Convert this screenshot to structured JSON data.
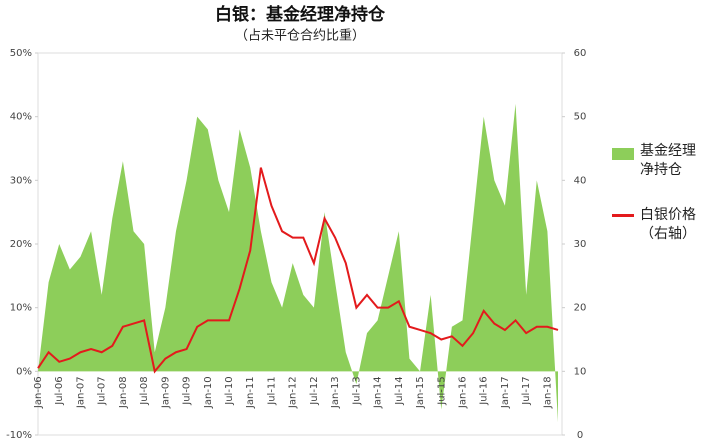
{
  "chart_data": {
    "type": "area-line",
    "title": "白银：基金经理净持仓",
    "subtitle": "（占未平仓合约比重）",
    "categories": [
      "Jan-06",
      null,
      "Jul-06",
      null,
      "Jan-07",
      null,
      "Jul-07",
      null,
      "Jan-08",
      null,
      "Jul-08",
      null,
      "Jan-09",
      null,
      "Jul-09",
      null,
      "Jan-10",
      null,
      "Jul-10",
      null,
      "Jan-11",
      null,
      "Jul-11",
      null,
      "Jan-12",
      null,
      "Jul-12",
      null,
      "Jan-13",
      null,
      "Jul-13",
      null,
      "Jan-14",
      null,
      "Jul-14",
      null,
      "Jan-15",
      null,
      "Jul-15",
      null,
      "Jan-16",
      null,
      "Jul-16",
      null,
      "Jan-17",
      null,
      "Jul-17",
      null,
      "Jan-18",
      null
    ],
    "series": [
      {
        "name": "基金经理净持仓",
        "type": "area",
        "color": "#8dce5a",
        "values": [
          0,
          14,
          20,
          16,
          18,
          22,
          12,
          24,
          33,
          22,
          20,
          3,
          10,
          22,
          30,
          40,
          38,
          30,
          25,
          38,
          32,
          22,
          14,
          10,
          17,
          12,
          10,
          25,
          14,
          3,
          -2,
          6,
          8,
          15,
          22,
          2,
          0,
          12,
          -6,
          7,
          8,
          24,
          40,
          30,
          26,
          42,
          12,
          30,
          22,
          -8
        ]
      },
      {
        "name": "白银价格（右轴）",
        "type": "line",
        "axis": "y2",
        "color": "#e31a1c",
        "values": [
          10.5,
          13,
          11.5,
          12,
          13,
          13.5,
          13,
          14,
          17,
          17.5,
          18,
          10,
          12,
          13,
          13.5,
          17,
          18,
          18,
          18,
          23,
          29,
          42,
          36,
          32,
          31,
          31,
          27,
          34,
          31,
          27,
          20,
          22,
          20,
          20,
          21,
          17,
          16.5,
          16,
          15,
          15.5,
          14,
          16,
          19.5,
          17.5,
          16.5,
          18,
          16,
          17,
          17,
          16.5
        ]
      }
    ],
    "ylim": [
      -10,
      50
    ],
    "yticks": [
      {
        "value": -10,
        "label": "-10%"
      },
      {
        "value": 0,
        "label": "0%"
      },
      {
        "value": 10,
        "label": "10%"
      },
      {
        "value": 20,
        "label": "20%"
      },
      {
        "value": 30,
        "label": "30%"
      },
      {
        "value": 40,
        "label": "40%"
      },
      {
        "value": 50,
        "label": "50%"
      }
    ],
    "y2lim": [
      0,
      60
    ],
    "y2ticks": [
      0,
      10,
      20,
      30,
      40,
      50,
      60
    ],
    "grid": false,
    "legend": "right"
  }
}
